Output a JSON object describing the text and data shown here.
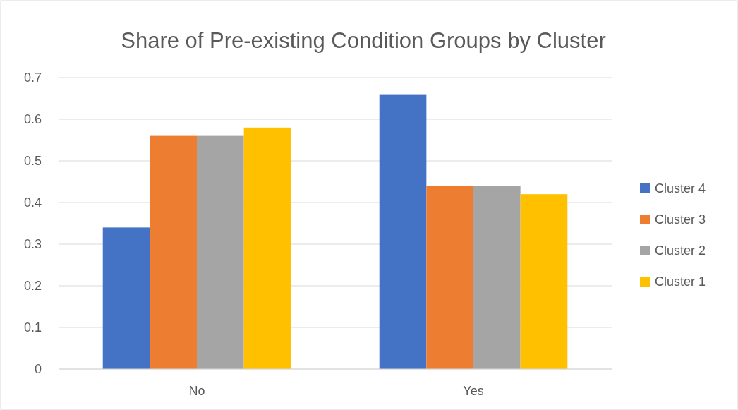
{
  "chart_data": {
    "type": "bar",
    "title": "Share of Pre-existing Condition Groups by Cluster",
    "categories": [
      "No",
      "Yes"
    ],
    "series": [
      {
        "name": "Cluster 4",
        "color": "#4472c4",
        "values": [
          0.34,
          0.66
        ]
      },
      {
        "name": "Cluster 3",
        "color": "#ed7d31",
        "values": [
          0.56,
          0.44
        ]
      },
      {
        "name": "Cluster 2",
        "color": "#a5a5a5",
        "values": [
          0.56,
          0.44
        ]
      },
      {
        "name": "Cluster 1",
        "color": "#ffc000",
        "values": [
          0.58,
          0.42
        ]
      }
    ],
    "ylim": [
      0,
      0.7
    ],
    "yticks": [
      0,
      0.1,
      0.2,
      0.3,
      0.4,
      0.5,
      0.6,
      0.7
    ],
    "grid": "y",
    "legend": "right"
  }
}
